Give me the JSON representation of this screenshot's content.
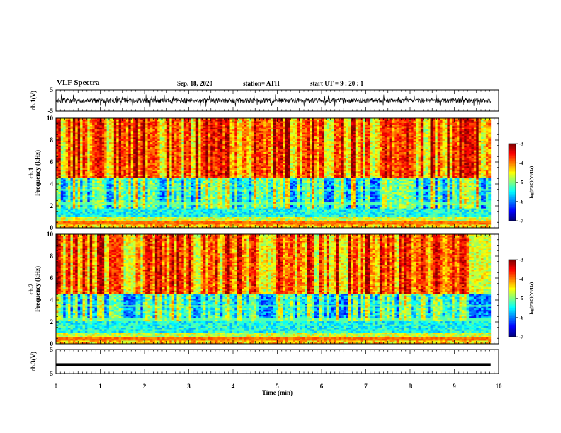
{
  "header": {
    "title": "VLF Spectra",
    "date": "Sep. 18, 2020",
    "station": "station= ATH",
    "start": "start  UT  =   9  : 20 : 1"
  },
  "chart_data": [
    {
      "type": "line",
      "ylabel": "ch.1(V)",
      "ylim": [
        -5,
        5
      ],
      "ytick_labels": [
        "5",
        "-5"
      ],
      "xlim": [
        0,
        10
      ],
      "description_values": {
        "baseline_v": 0,
        "fluctuation_v": [
          -3,
          3
        ]
      }
    },
    {
      "type": "heatmap",
      "ylabel_top": "ch.1",
      "ylabel": "Frequency  (kHz)",
      "ylim": [
        0,
        10
      ],
      "ytick_labels": [
        "0",
        "2",
        "4",
        "6",
        "8",
        "10"
      ],
      "xlim": [
        0,
        10
      ],
      "colorbar": {
        "label": "log(PSD)(V²/Hz)",
        "range": [
          -7,
          -3
        ],
        "tick_labels": [
          "-3",
          "-4",
          "-5",
          "-6",
          "-7"
        ]
      }
    },
    {
      "type": "heatmap",
      "ylabel_top": "ch.2",
      "ylabel": "Frequency  (kHz)",
      "ylim": [
        0,
        10
      ],
      "ytick_labels": [
        "0",
        "2",
        "4",
        "6",
        "8",
        "10"
      ],
      "xlim": [
        0,
        10
      ],
      "colorbar": {
        "label": "log(PSD)(V²/Hz)",
        "range": [
          -7,
          -3
        ],
        "tick_labels": [
          "-3",
          "-4",
          "-5",
          "-6",
          "-7"
        ]
      }
    },
    {
      "type": "line",
      "ylabel": "ch.3(V)",
      "ylim": [
        -5,
        5
      ],
      "ytick_labels": [
        "5",
        "-5"
      ],
      "xlim": [
        0,
        10
      ],
      "series": [
        {
          "values": [
            -1.3,
            -1.3
          ]
        }
      ]
    }
  ],
  "xaxis": {
    "label": "Time  (min)",
    "tick_labels": [
      "0",
      "1",
      "2",
      "3",
      "4",
      "5",
      "6",
      "7",
      "8",
      "9",
      "10"
    ]
  }
}
